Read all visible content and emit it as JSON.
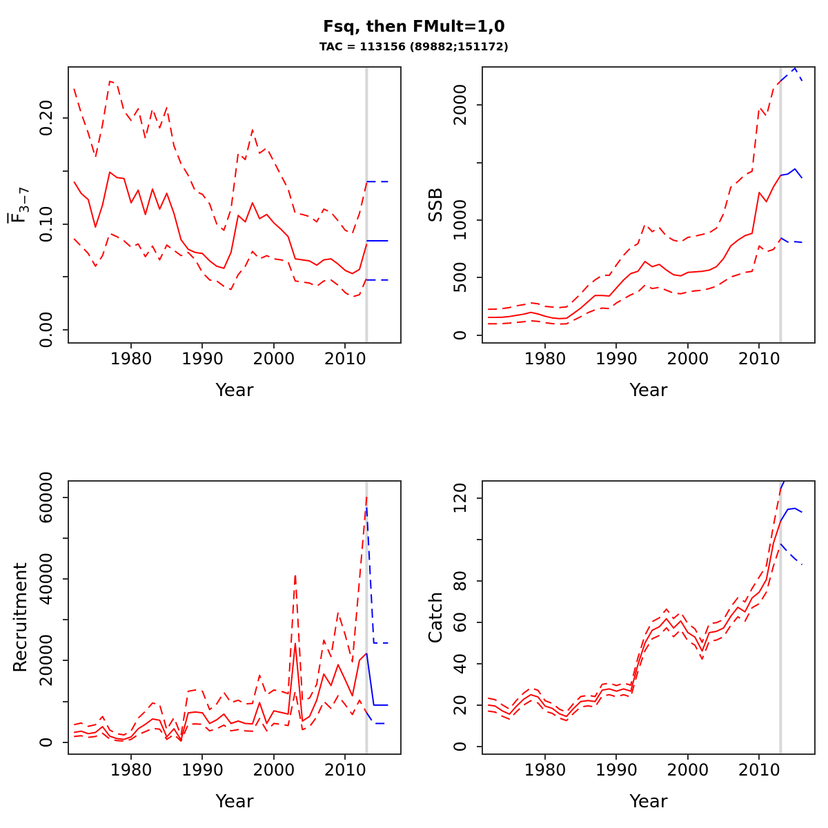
{
  "header": {
    "title": "Fsq, then FMult=1,0",
    "subtitle": "TAC = 113156 (89882;151172)"
  },
  "colors": {
    "history": "#FF0000",
    "forecast": "#0000FF",
    "forecast_divider": "#D8D8D8",
    "axis": "#2E2E2E"
  },
  "chart_data": [
    {
      "type": "line",
      "ylabel": "F",
      "ylabel_sub": "3−7",
      "ylabel_overline": true,
      "xlabel": "Year",
      "xlim": [
        1971.3,
        2017.7
      ],
      "ylim": [
        -0.012,
        0.248
      ],
      "grid": false,
      "legend": "none",
      "xticks": [
        1980,
        1990,
        2000,
        2010
      ],
      "xtick_labels": [
        "1980",
        "1990",
        "2000",
        "2010"
      ],
      "yticks": [
        0,
        0.05,
        0.1,
        0.15,
        0.2
      ],
      "ytick_labels": [
        "0.00",
        "",
        "0.10",
        "",
        "0.20"
      ],
      "divider_x": 2013,
      "series": [
        {
          "name": "median",
          "role": "history",
          "dash": false,
          "x_start": 1972,
          "values": [
            0.14,
            0.129,
            0.123,
            0.097,
            0.118,
            0.149,
            0.144,
            0.143,
            0.12,
            0.132,
            0.109,
            0.133,
            0.114,
            0.129,
            0.11,
            0.085,
            0.076,
            0.073,
            0.072,
            0.065,
            0.06,
            0.058,
            0.073,
            0.108,
            0.102,
            0.12,
            0.105,
            0.109,
            0.101,
            0.095,
            0.088,
            0.067,
            0.066,
            0.065,
            0.061,
            0.066,
            0.067,
            0.062,
            0.056,
            0.053,
            0.057,
            0.081
          ]
        },
        {
          "name": "upper-ci",
          "role": "history",
          "dash": true,
          "x_start": 1972,
          "values": [
            0.228,
            0.205,
            0.186,
            0.163,
            0.194,
            0.235,
            0.233,
            0.207,
            0.198,
            0.209,
            0.181,
            0.209,
            0.191,
            0.21,
            0.174,
            0.157,
            0.146,
            0.131,
            0.128,
            0.119,
            0.1,
            0.094,
            0.114,
            0.167,
            0.161,
            0.189,
            0.167,
            0.172,
            0.159,
            0.146,
            0.133,
            0.11,
            0.109,
            0.107,
            0.102,
            0.114,
            0.111,
            0.103,
            0.094,
            0.091,
            0.11,
            0.139
          ]
        },
        {
          "name": "lower-ci",
          "role": "history",
          "dash": true,
          "x_start": 1972,
          "values": [
            0.086,
            0.079,
            0.072,
            0.06,
            0.07,
            0.091,
            0.088,
            0.084,
            0.078,
            0.081,
            0.069,
            0.079,
            0.066,
            0.08,
            0.075,
            0.07,
            0.073,
            0.066,
            0.054,
            0.047,
            0.046,
            0.041,
            0.038,
            0.052,
            0.06,
            0.074,
            0.067,
            0.07,
            0.067,
            0.066,
            0.064,
            0.046,
            0.045,
            0.044,
            0.041,
            0.046,
            0.047,
            0.042,
            0.035,
            0.031,
            0.033,
            0.049
          ]
        },
        {
          "name": "forecast-median",
          "role": "forecast",
          "dash": false,
          "x_start": 2013,
          "values": [
            0.084,
            0.084,
            0.084,
            0.084
          ]
        },
        {
          "name": "forecast-upper-ci",
          "role": "forecast",
          "dash": true,
          "x_start": 2013,
          "values": [
            0.14,
            0.14,
            0.14,
            0.14
          ]
        },
        {
          "name": "forecast-lower-ci",
          "role": "forecast",
          "dash": true,
          "x_start": 2013,
          "values": [
            0.047,
            0.047,
            0.047,
            0.047
          ]
        }
      ]
    },
    {
      "type": "line",
      "ylabel": "SSB",
      "ylabel_sub": "",
      "ylabel_overline": false,
      "xlabel": "Year",
      "xlim": [
        1971.3,
        2017.7
      ],
      "ylim": [
        -62,
        2326
      ],
      "grid": false,
      "legend": "none",
      "xticks": [
        1980,
        1990,
        2000,
        2010
      ],
      "xtick_labels": [
        "1980",
        "1990",
        "2000",
        "2010"
      ],
      "yticks": [
        0,
        500,
        1000,
        1500,
        2000
      ],
      "ytick_labels": [
        "0",
        "500",
        "1000",
        "",
        "2000"
      ],
      "divider_x": 2013,
      "series": [
        {
          "name": "median",
          "role": "history",
          "dash": false,
          "x_start": 1972,
          "values": [
            154,
            154,
            156,
            162,
            172,
            182,
            198,
            184,
            164,
            150,
            144,
            146,
            190,
            235,
            290,
            345,
            345,
            340,
            410,
            480,
            535,
            555,
            640,
            595,
            615,
            565,
            525,
            515,
            545,
            550,
            555,
            565,
            595,
            665,
            775,
            825,
            865,
            885,
            1240,
            1160,
            1290,
            1390
          ]
        },
        {
          "name": "upper-ci",
          "role": "history",
          "dash": true,
          "x_start": 1972,
          "values": [
            224,
            226,
            230,
            240,
            255,
            265,
            280,
            272,
            250,
            244,
            240,
            246,
            300,
            360,
            430,
            480,
            520,
            520,
            610,
            695,
            760,
            795,
            965,
            900,
            935,
            860,
            825,
            810,
            850,
            860,
            875,
            890,
            930,
            1055,
            1285,
            1335,
            1395,
            1425,
            1985,
            1905,
            2145,
            2210
          ]
        },
        {
          "name": "lower-ci",
          "role": "history",
          "dash": true,
          "x_start": 1972,
          "values": [
            98,
            98,
            100,
            104,
            110,
            116,
            124,
            120,
            108,
            100,
            96,
            98,
            130,
            160,
            195,
            220,
            235,
            230,
            280,
            315,
            350,
            375,
            435,
            405,
            415,
            390,
            365,
            360,
            375,
            385,
            390,
            405,
            425,
            465,
            505,
            525,
            545,
            555,
            775,
            725,
            745,
            835
          ]
        },
        {
          "name": "forecast-median",
          "role": "forecast",
          "dash": false,
          "x_start": 2013,
          "values": [
            1390,
            1400,
            1445,
            1365
          ]
        },
        {
          "name": "forecast-upper-ci",
          "role": "forecast",
          "dash": true,
          "x_start": 2013,
          "values": [
            2210,
            2265,
            2320,
            2210
          ]
        },
        {
          "name": "forecast-lower-ci",
          "role": "forecast",
          "dash": true,
          "x_start": 2013,
          "values": [
            845,
            810,
            812,
            806
          ]
        }
      ]
    },
    {
      "type": "line",
      "ylabel": "Recruitment",
      "ylabel_sub": "",
      "ylabel_overline": false,
      "xlabel": "Year",
      "xlim": [
        1971.3,
        2017.7
      ],
      "ylim": [
        -2750,
        63830
      ],
      "grid": false,
      "legend": "none",
      "xticks": [
        1980,
        1990,
        2000,
        2010
      ],
      "xtick_labels": [
        "1980",
        "1990",
        "2000",
        "2010"
      ],
      "yticks": [
        0,
        10000,
        20000,
        30000,
        40000,
        50000,
        60000
      ],
      "ytick_labels": [
        "0",
        "",
        "20000",
        "",
        "40000",
        "",
        "60000"
      ],
      "divider_x": 2013,
      "series": [
        {
          "name": "median",
          "role": "history",
          "dash": false,
          "x_start": 1972,
          "values": [
            2400,
            2700,
            2100,
            2400,
            3800,
            1500,
            900,
            700,
            1300,
            3300,
            4400,
            5700,
            5400,
            1300,
            3300,
            600,
            7200,
            7400,
            7200,
            4600,
            5500,
            6900,
            4600,
            5200,
            4600,
            4500,
            9700,
            4600,
            7700,
            7300,
            6900,
            24200,
            5200,
            6300,
            10300,
            16700,
            13900,
            19000,
            15300,
            11400,
            20100,
            21800
          ]
        },
        {
          "name": "upper-ci",
          "role": "history",
          "dash": true,
          "x_start": 1972,
          "values": [
            4300,
            4700,
            3900,
            4300,
            6300,
            3000,
            2100,
            1800,
            2800,
            5900,
            7600,
            9600,
            9200,
            3100,
            6000,
            1700,
            12500,
            12800,
            12500,
            8000,
            9400,
            12200,
            9700,
            10300,
            9400,
            9500,
            16400,
            11600,
            12800,
            12500,
            11900,
            41500,
            10300,
            10800,
            14200,
            25000,
            21000,
            31800,
            26300,
            19700,
            39800,
            60100
          ]
        },
        {
          "name": "lower-ci",
          "role": "history",
          "dash": true,
          "x_start": 1972,
          "values": [
            1400,
            1600,
            1200,
            1400,
            2200,
            800,
            400,
            300,
            700,
            1900,
            2600,
            3400,
            3200,
            700,
            1900,
            300,
            4400,
            4500,
            4400,
            2800,
            3300,
            4200,
            2800,
            3100,
            2800,
            2700,
            5800,
            2800,
            4600,
            4400,
            4100,
            12500,
            3100,
            3800,
            6200,
            10000,
            8300,
            11400,
            9200,
            6800,
            10300,
            7200
          ]
        },
        {
          "name": "forecast-median",
          "role": "forecast",
          "dash": false,
          "x_start": 2013,
          "values": [
            21800,
            9100,
            9100,
            9100
          ]
        },
        {
          "name": "forecast-upper-ci",
          "role": "forecast",
          "dash": true,
          "x_start": 2013,
          "values": [
            57500,
            24300,
            24300,
            24300
          ]
        },
        {
          "name": "forecast-lower-ci",
          "role": "forecast",
          "dash": true,
          "x_start": 2013,
          "values": [
            7200,
            4600,
            4600,
            4600
          ]
        }
      ]
    },
    {
      "type": "line",
      "ylabel": "Catch",
      "ylabel_sub": "",
      "ylabel_overline": false,
      "xlabel": "Year",
      "xlim": [
        1971.3,
        2017.7
      ],
      "ylim": [
        -3.2,
        128.1
      ],
      "grid": false,
      "legend": "none",
      "xticks": [
        1980,
        1990,
        2000,
        2010
      ],
      "xtick_labels": [
        "1980",
        "1990",
        "2000",
        "2010"
      ],
      "yticks": [
        0,
        20,
        40,
        60,
        80,
        100,
        120
      ],
      "ytick_labels": [
        "0",
        "20",
        "40",
        "60",
        "80",
        "",
        "120"
      ],
      "divider_x": 2013,
      "series": [
        {
          "name": "median",
          "role": "history",
          "dash": false,
          "x_start": 1972,
          "values": [
            20.2,
            19.7,
            17.4,
            15.8,
            19.7,
            23.0,
            25.2,
            24.1,
            19.7,
            18.6,
            16.0,
            14.7,
            18.6,
            21.9,
            22.4,
            21.9,
            27.4,
            28.0,
            26.9,
            28.0,
            26.9,
            39.7,
            50.2,
            56.3,
            58.0,
            61.9,
            57.4,
            60.8,
            55.2,
            53.0,
            46.3,
            55.2,
            55.8,
            57.4,
            63.0,
            67.4,
            65.2,
            71.9,
            74.7,
            80.8,
            98.5,
            109.1
          ]
        },
        {
          "name": "upper-ci",
          "role": "history",
          "dash": true,
          "x_start": 1972,
          "values": [
            23.5,
            22.8,
            20.3,
            18.3,
            22.5,
            26.0,
            28.5,
            27.3,
            22.3,
            21.0,
            18.2,
            16.8,
            21.0,
            24.3,
            24.9,
            24.3,
            30.2,
            30.8,
            29.6,
            30.8,
            29.8,
            43.0,
            54.0,
            60.5,
            62.3,
            66.5,
            62.0,
            65.0,
            59.5,
            57.0,
            50.5,
            59.5,
            60.0,
            61.5,
            67.5,
            72.0,
            70.0,
            76.5,
            82.0,
            87.5,
            107.0,
            124.7
          ]
        },
        {
          "name": "lower-ci",
          "role": "history",
          "dash": true,
          "x_start": 1972,
          "values": [
            17.3,
            16.8,
            14.8,
            13.4,
            17.0,
            20.2,
            22.3,
            21.2,
            17.2,
            16.2,
            13.9,
            12.7,
            16.2,
            19.3,
            19.8,
            19.3,
            24.6,
            25.2,
            24.2,
            25.2,
            24.1,
            36.4,
            46.5,
            52.2,
            53.8,
            57.5,
            53.2,
            56.6,
            51.2,
            49.1,
            42.4,
            51.0,
            51.6,
            53.2,
            58.6,
            62.8,
            60.7,
            67.2,
            69.1,
            74.7,
            87.4,
            98.0
          ]
        },
        {
          "name": "forecast-median",
          "role": "forecast",
          "dash": false,
          "x_start": 2013,
          "values": [
            109.1,
            114.7,
            115.2,
            113.3
          ]
        },
        {
          "name": "forecast-upper-ci",
          "role": "forecast",
          "dash": true,
          "x_start": 2013,
          "values": [
            124.7,
            132,
            134,
            131
          ]
        },
        {
          "name": "forecast-lower-ci",
          "role": "forecast",
          "dash": true,
          "x_start": 2013,
          "values": [
            98.0,
            94.1,
            90.8,
            88.0
          ]
        }
      ]
    }
  ]
}
